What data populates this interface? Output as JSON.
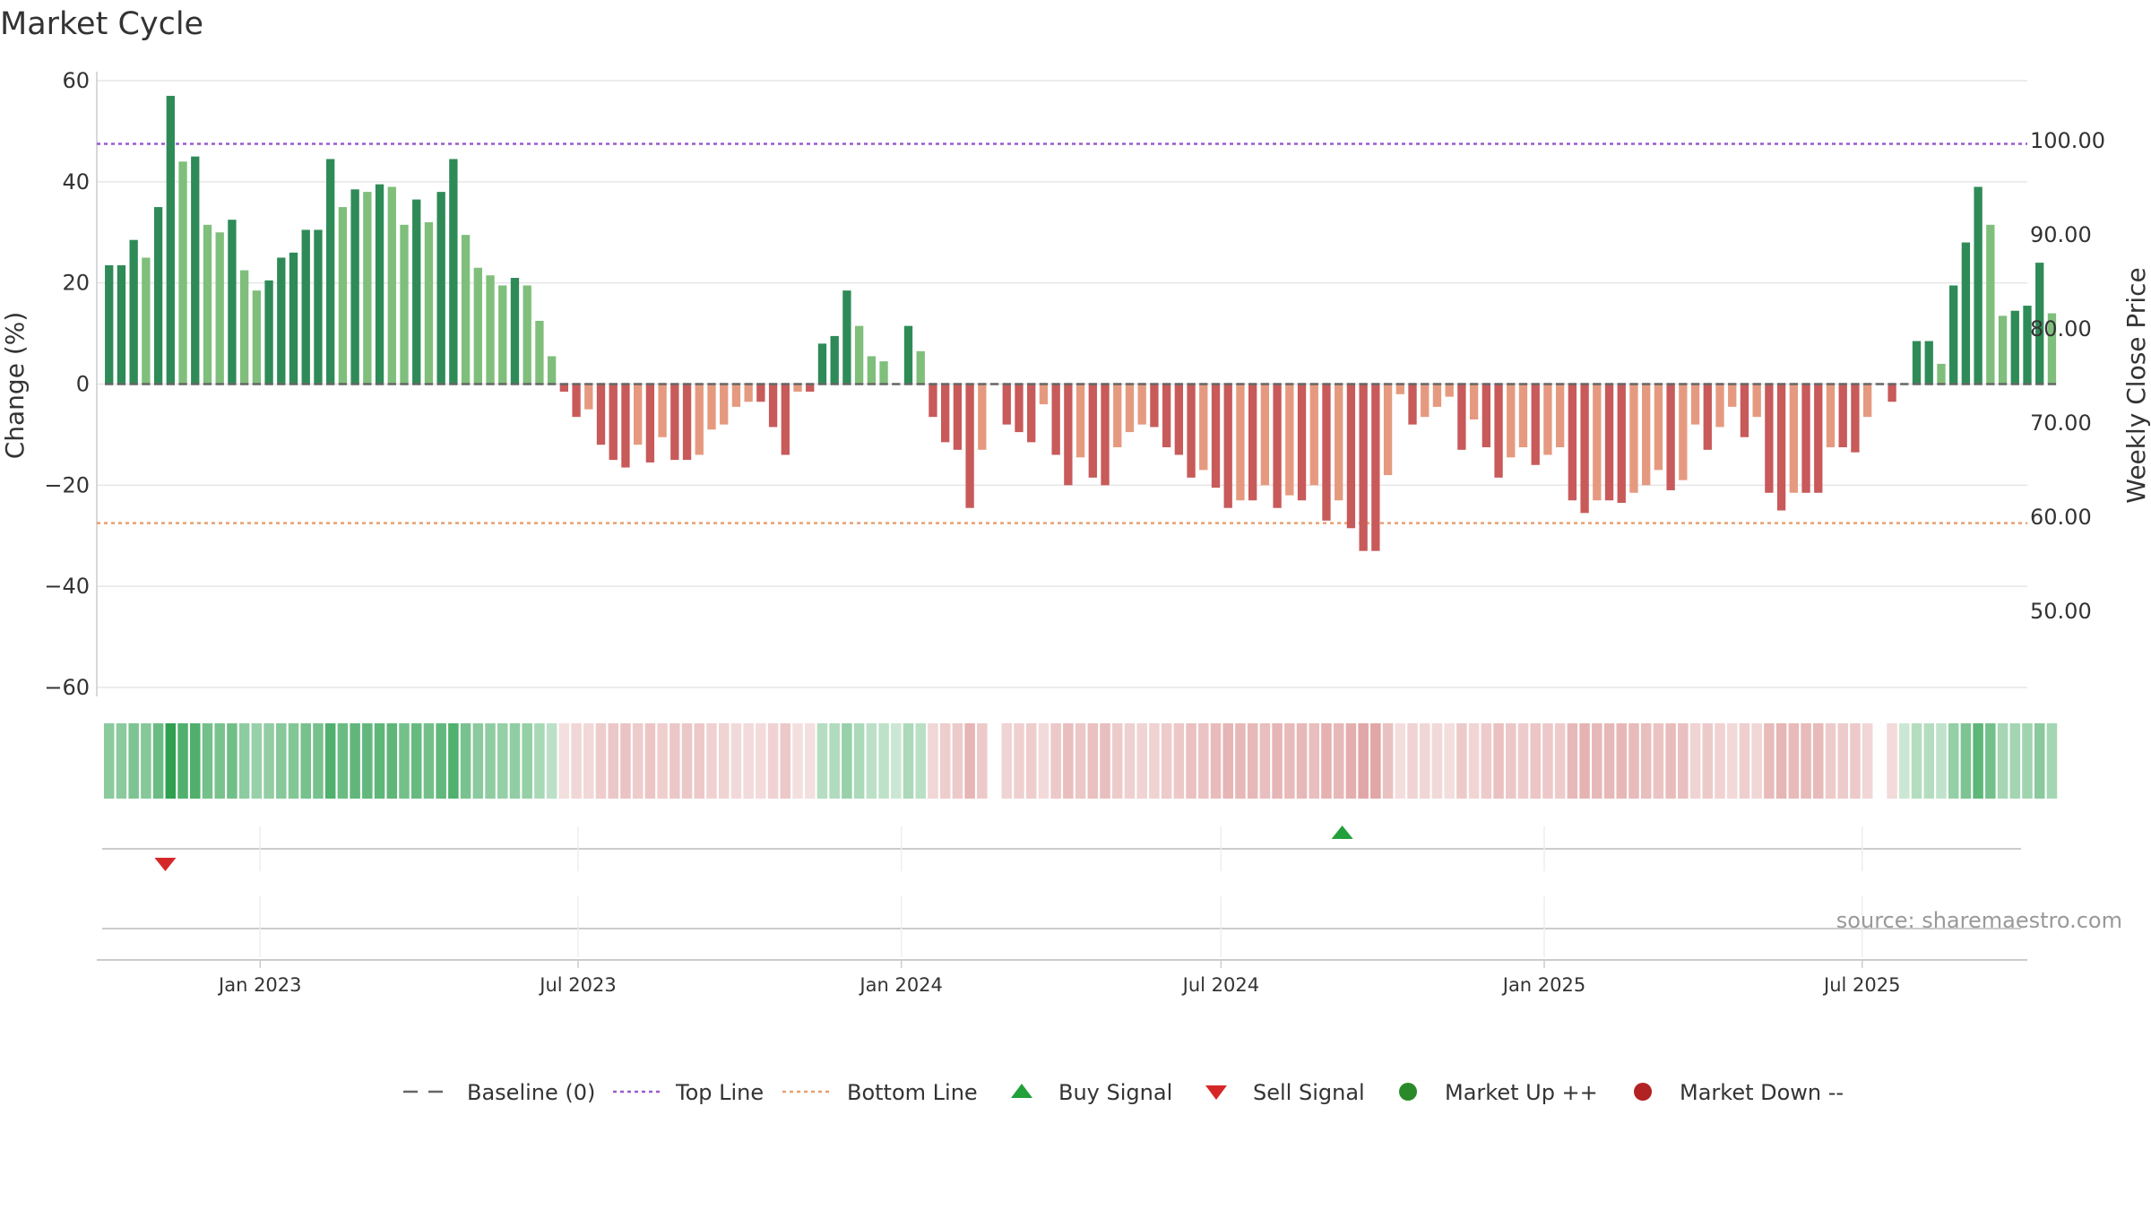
{
  "chart_data": {
    "type": "bar",
    "title": "Market Cycle",
    "ylabel": "Change (%)",
    "y2label": "Weekly Close Price",
    "ylim": [
      -60,
      60
    ],
    "y2lim": [
      43.0,
      105.0
    ],
    "yticks": [
      60,
      40,
      20,
      0,
      -20,
      -40,
      -60
    ],
    "ytick_labels": [
      "60",
      "40",
      "20",
      "0",
      "−20",
      "−40",
      "−60"
    ],
    "y2ticks": [
      100.0,
      90.0,
      80.0,
      70.0,
      60.0,
      50.0
    ],
    "y2tick_labels": [
      "100.00",
      "90.00",
      "80.00",
      "70.00",
      "60.00",
      "50.00"
    ],
    "x_start": "2022-09-30",
    "x_end": "2025-10-03",
    "xtick_dates": [
      "2023-01-01",
      "2023-07-01",
      "2024-01-01",
      "2024-07-01",
      "2025-01-01",
      "2025-07-01"
    ],
    "xtick_labels": [
      "Jan 2023",
      "Jul 2023",
      "Jan 2024",
      "Jul 2024",
      "Jan 2025",
      "Jul 2025"
    ],
    "grid": true,
    "legend_position": "bottom-center",
    "top_line": 47.5,
    "bottom_line": -27.5,
    "series": [
      {
        "start_date": "2022-10-07",
        "interval_days": 7,
        "values": [
          23.5,
          23.5,
          28.5,
          25,
          35,
          57,
          44,
          45,
          31.5,
          30,
          32.5,
          22.5,
          18.5,
          20.5,
          25,
          26,
          30.5,
          30.5,
          44.5,
          35,
          38.5,
          38,
          39.5,
          39,
          31.5,
          36.5,
          32,
          38,
          44.5,
          29.5,
          23,
          21.5,
          19.5,
          21,
          19.5,
          12.5,
          5.5,
          -1.5,
          -6.5,
          -5,
          -12,
          -15,
          -16.5,
          -12,
          -15.5,
          -10.5,
          -15,
          -15,
          -14,
          -9,
          -8,
          -4.5,
          -3.5,
          -3.5,
          -8.5,
          -14,
          -1.5,
          -1.5,
          8,
          9.5,
          18.5,
          11.5,
          5.5,
          4.5,
          0,
          11.5,
          6.5,
          -6.5,
          -11.5,
          -13,
          -24.5,
          -13,
          0,
          -8,
          -9.5,
          -11.5,
          -4,
          -14,
          -20,
          -14.5,
          -18.5,
          -20,
          -12.5,
          -9.5,
          -8,
          -8.5,
          -12.5,
          -14,
          -18.5,
          -17,
          -20.5,
          -24.5,
          -23,
          -23,
          -20,
          -24.5,
          -22,
          -23,
          -20,
          -27,
          -23,
          -28.5,
          -33,
          -33,
          -18,
          -2,
          -8,
          -6.5,
          -4.5,
          -2.5,
          -13,
          -7,
          -12.5,
          -18.5,
          -14.5,
          -12.5,
          -16,
          -14,
          -12.5,
          -23,
          -25.5,
          -23,
          -23,
          -23.5,
          -21.5,
          -20,
          -17,
          -21,
          -19,
          -8,
          -13,
          -8.5,
          -4.5,
          -10.5,
          -6.5,
          -21.5,
          -25,
          -21.5,
          -21.5,
          -21.5,
          -12.5,
          -12.5,
          -13.5,
          -6.5,
          0,
          -3.5,
          0,
          8.5,
          8.5,
          4,
          19.5,
          28,
          39,
          31.5,
          13.5,
          14.5,
          15.5,
          24,
          14
        ]
      }
    ],
    "signals": [
      {
        "type": "sell",
        "date": "2022-11-08"
      },
      {
        "type": "buy",
        "date": "2024-09-08"
      }
    ]
  },
  "legend": [
    {
      "label": "Baseline (0)",
      "symbol": "dash",
      "color": "#666666"
    },
    {
      "label": "Top Line",
      "symbol": "dot",
      "color": "#9b59d0"
    },
    {
      "label": "Bottom Line",
      "symbol": "dot",
      "color": "#e8a070"
    },
    {
      "label": "Buy Signal",
      "symbol": "triangle-up",
      "color": "#22a03a"
    },
    {
      "label": "Sell Signal",
      "symbol": "triangle-down",
      "color": "#d62728"
    },
    {
      "label": "Market Up ++",
      "symbol": "circle",
      "color": "#2a8a2a"
    },
    {
      "label": "Market Down --",
      "symbol": "circle",
      "color": "#b22222"
    }
  ],
  "source": "source: sharemaestro.com",
  "colors": {
    "up_strong": "#2e8b57",
    "up_weak": "#7fbf7b",
    "down_strong": "#c85a5a",
    "down_weak": "#e59a80",
    "grid": "#e6e6e6"
  }
}
